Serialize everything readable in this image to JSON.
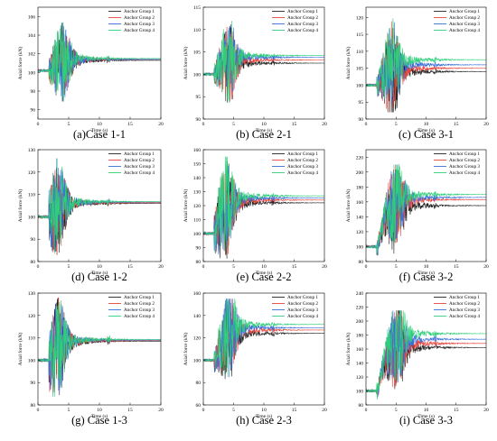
{
  "figure": {
    "colors": [
      "#222222",
      "#e8453c",
      "#3a6fdc",
      "#2fcf7a"
    ],
    "legend_position": "top-right"
  },
  "chart_data": [
    {
      "id": "a",
      "type": "line",
      "caption": "(a)Case 1-1",
      "xlabel": "Time (s)",
      "ylabel": "Axial force (kN)",
      "xlim": [
        0,
        20
      ],
      "xticks": [
        0,
        5,
        10,
        15,
        20
      ],
      "ylim": [
        95,
        107
      ],
      "yticks": [
        96,
        98,
        100,
        102,
        104,
        106
      ],
      "baseline": 100.2,
      "final": [
        101.3,
        101.4,
        101.4,
        101.5
      ],
      "peak_range": [
        96.6,
        105.4
      ],
      "peak_time": 3.8,
      "series": [
        {
          "name": "Anchor Group 1"
        },
        {
          "name": "Anchor Group 2"
        },
        {
          "name": "Anchor Group 3"
        },
        {
          "name": "Anchor Group 4"
        }
      ]
    },
    {
      "id": "b",
      "type": "line",
      "caption": "(b) Case 2-1",
      "xlabel": "Time (s)",
      "ylabel": "Axial force (kN)",
      "xlim": [
        0,
        20
      ],
      "xticks": [
        0,
        5,
        10,
        15,
        20
      ],
      "ylim": [
        90,
        115
      ],
      "yticks": [
        90,
        95,
        100,
        105,
        110,
        115
      ],
      "baseline": 100,
      "final": [
        102.5,
        103.2,
        103.8,
        104.2
      ],
      "peak_range": [
        93,
        112
      ],
      "peak_time": 4.0,
      "series": [
        {
          "name": "Anchor Group 1"
        },
        {
          "name": "Anchor Group 2"
        },
        {
          "name": "Anchor Group 3"
        },
        {
          "name": "Anchor Group 4"
        }
      ]
    },
    {
      "id": "c",
      "type": "line",
      "caption": "(c) Case 3-1",
      "xlabel": "Time (s)",
      "ylabel": "Axial force (kN)",
      "xlim": [
        0,
        20
      ],
      "xticks": [
        0,
        5,
        10,
        15,
        20
      ],
      "ylim": [
        90,
        123
      ],
      "yticks": [
        90,
        95,
        100,
        105,
        110,
        115,
        120
      ],
      "baseline": 100,
      "final": [
        104,
        105,
        106,
        107.5
      ],
      "peak_range": [
        92,
        120
      ],
      "peak_time": 4.2,
      "series": [
        {
          "name": "Anchor Group 1"
        },
        {
          "name": "Anchor Group 2"
        },
        {
          "name": "Anchor Group 3"
        },
        {
          "name": "Anchor Group 4"
        }
      ]
    },
    {
      "id": "d",
      "type": "line",
      "caption": "(d) Case 1-2",
      "xlabel": "Time (s)",
      "ylabel": "Axial force (kN)",
      "xlim": [
        0,
        20
      ],
      "xticks": [
        0,
        5,
        10,
        15,
        20
      ],
      "ylim": [
        80,
        130
      ],
      "yticks": [
        80,
        90,
        100,
        110,
        120,
        130
      ],
      "baseline": 100,
      "final": [
        106,
        106.3,
        106.6,
        106.8
      ],
      "peak_range": [
        83,
        126
      ],
      "peak_time": 3.0,
      "series": [
        {
          "name": "Anchor Group 1"
        },
        {
          "name": "Anchor Group 2"
        },
        {
          "name": "Anchor Group 3"
        },
        {
          "name": "Anchor Group 4"
        }
      ]
    },
    {
      "id": "e",
      "type": "line",
      "caption": "(e) Case 2-2",
      "xlabel": "Time (s)",
      "ylabel": "Axial force (kN)",
      "xlim": [
        0,
        20
      ],
      "xticks": [
        0,
        5,
        10,
        15,
        20
      ],
      "ylim": [
        80,
        160
      ],
      "yticks": [
        80,
        90,
        100,
        110,
        120,
        130,
        140,
        150,
        160
      ],
      "baseline": 100,
      "final": [
        122,
        124,
        125.5,
        127
      ],
      "peak_range": [
        82,
        155
      ],
      "peak_time": 3.5,
      "series": [
        {
          "name": "Anchor Group 1"
        },
        {
          "name": "Anchor Group 2"
        },
        {
          "name": "Anchor Group 3"
        },
        {
          "name": "Anchor Group 4"
        }
      ]
    },
    {
      "id": "f",
      "type": "line",
      "caption": "(f) Case 3-2",
      "xlabel": "Time (s)",
      "ylabel": "Axial force (kN)",
      "xlim": [
        0,
        20
      ],
      "xticks": [
        0,
        5,
        10,
        15,
        20
      ],
      "ylim": [
        80,
        230
      ],
      "yticks": [
        80,
        100,
        120,
        140,
        160,
        180,
        200,
        220
      ],
      "baseline": 100,
      "final": [
        155,
        163,
        166,
        170
      ],
      "peak_range": [
        85,
        210
      ],
      "peak_time": 4.8,
      "series": [
        {
          "name": "Anchor Group 1"
        },
        {
          "name": "Anchor Group 2"
        },
        {
          "name": "Anchor Group 3"
        },
        {
          "name": "Anchor Group 4"
        }
      ]
    },
    {
      "id": "g",
      "type": "line",
      "caption": "(g) Case 1-3",
      "xlabel": "Time (s)",
      "ylabel": "Axial force (kN)",
      "xlim": [
        0,
        20
      ],
      "xticks": [
        0,
        5,
        10,
        15,
        20
      ],
      "ylim": [
        80,
        130
      ],
      "yticks": [
        80,
        90,
        100,
        110,
        120,
        130
      ],
      "baseline": 100,
      "final": [
        108.5,
        108.8,
        109,
        109.3
      ],
      "peak_range": [
        82,
        128
      ],
      "peak_time": 3.0,
      "series": [
        {
          "name": "Anchor Group 1"
        },
        {
          "name": "Anchor Group 2"
        },
        {
          "name": "Anchor Group 3"
        },
        {
          "name": "Anchor Group 4"
        }
      ]
    },
    {
      "id": "h",
      "type": "line",
      "caption": "(h) Case 2-3",
      "xlabel": "Time (s)",
      "ylabel": "Axial force (kN)",
      "xlim": [
        0,
        20
      ],
      "xticks": [
        0,
        5,
        10,
        15,
        20
      ],
      "ylim": [
        60,
        160
      ],
      "yticks": [
        60,
        80,
        100,
        120,
        140,
        160
      ],
      "baseline": 100,
      "final": [
        124,
        127,
        129,
        132
      ],
      "peak_range": [
        75,
        155
      ],
      "peak_time": 4.0,
      "series": [
        {
          "name": "Anchor Group 1"
        },
        {
          "name": "Anchor Group 2"
        },
        {
          "name": "Anchor Group 3"
        },
        {
          "name": "Anchor Group 4"
        }
      ]
    },
    {
      "id": "i",
      "type": "line",
      "caption": "(i) Case 3-3",
      "xlabel": "Time (s)",
      "ylabel": "Axial force (kN)",
      "xlim": [
        0,
        20
      ],
      "xticks": [
        0,
        5,
        10,
        15,
        20
      ],
      "ylim": [
        80,
        240
      ],
      "yticks": [
        80,
        100,
        120,
        140,
        160,
        180,
        200,
        220,
        240
      ],
      "baseline": 100,
      "final": [
        162,
        168,
        174,
        182
      ],
      "peak_range": [
        85,
        215
      ],
      "peak_time": 5.0,
      "series": [
        {
          "name": "Anchor Group 1"
        },
        {
          "name": "Anchor Group 2"
        },
        {
          "name": "Anchor Group 3"
        },
        {
          "name": "Anchor Group 4"
        }
      ]
    }
  ]
}
